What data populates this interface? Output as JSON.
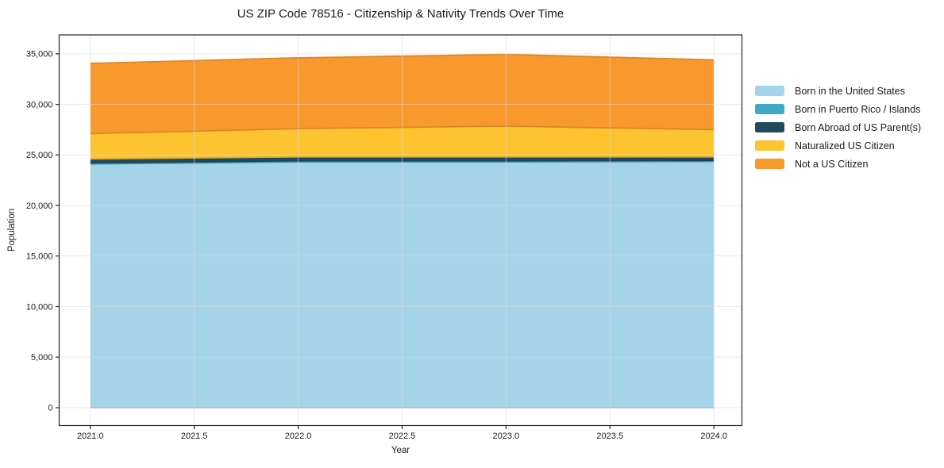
{
  "chart_data": {
    "type": "area",
    "stacked": true,
    "title": "US ZIP Code 78516 - Citizenship & Nativity Trends Over Time",
    "xlabel": "Year",
    "ylabel": "Population",
    "x": [
      2021,
      2022,
      2023,
      2024
    ],
    "series": [
      {
        "name": "Born in the United States",
        "color": "#A5D3E9",
        "values": [
          24100,
          24300,
          24300,
          24350
        ]
      },
      {
        "name": "Born in Puerto Rico / Islands",
        "color": "#41A7C6",
        "values": [
          120,
          120,
          120,
          110
        ]
      },
      {
        "name": "Born Abroad of US Parent(s)",
        "color": "#214A5E",
        "values": [
          380,
          380,
          380,
          340
        ]
      },
      {
        "name": "Naturalized US Citizen",
        "color": "#FDC330",
        "values": [
          2500,
          2800,
          3050,
          2700
        ]
      },
      {
        "name": "Not a US Citizen",
        "color": "#F8982D",
        "values": [
          6950,
          7000,
          7100,
          6900
        ]
      }
    ],
    "totals": [
      34050,
      34600,
      34950,
      34400
    ],
    "x_tick_labels": [
      "2021.0",
      "2021.5",
      "2022.0",
      "2022.5",
      "2023.0",
      "2023.5",
      "2024.0"
    ],
    "x_ticks": [
      2021.0,
      2021.5,
      2022.0,
      2022.5,
      2023.0,
      2023.5,
      2024.0
    ],
    "y_tick_labels": [
      "0",
      "5,000",
      "10,000",
      "15,000",
      "20,000",
      "25,000",
      "30,000",
      "35,000"
    ],
    "y_ticks": [
      0,
      5000,
      10000,
      15000,
      20000,
      25000,
      30000,
      35000
    ],
    "xlim": [
      2020.85,
      2024.135
    ],
    "ylim": [
      -1770,
      36870
    ],
    "grid": true,
    "grid_color": "#dcdcdc",
    "spine_color": "#262626",
    "text_color": "#1a1a1a",
    "legend_position": "right"
  }
}
